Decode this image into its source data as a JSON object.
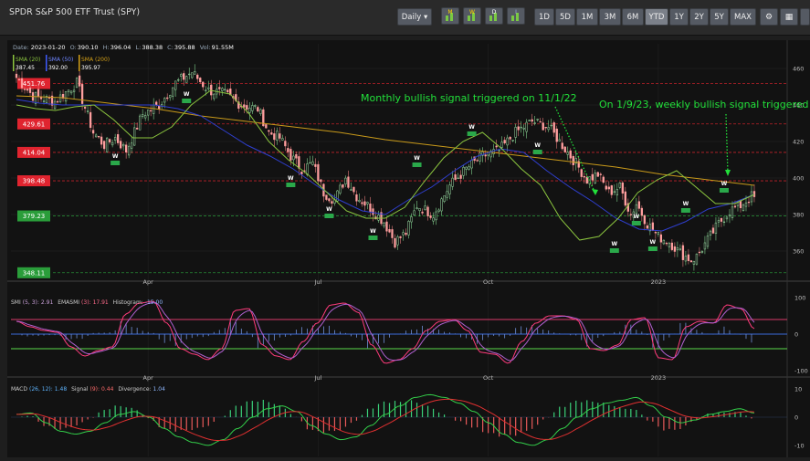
{
  "window": {
    "title": "SPDR S&P 500 ETF Trust (SPY)"
  },
  "toolbar": {
    "interval": "Daily ▾",
    "ranges": [
      "1D",
      "5D",
      "1M",
      "3M",
      "6M",
      "YTD",
      "1Y",
      "2Y",
      "5Y",
      "MAX"
    ],
    "active_range": "YTD",
    "indicator_icons": [
      "M",
      "W",
      "D",
      "I"
    ]
  },
  "price_info": {
    "date_label": "Date:",
    "date": "2023-01-20",
    "open_label": "O:",
    "open": "390.10",
    "high_label": "H:",
    "high": "396.04",
    "low_label": "L:",
    "low": "388.38",
    "close_label": "C:",
    "close": "395.88",
    "volume_label": "Vol:",
    "volume": "91.55M"
  },
  "sma_legend": [
    {
      "label": "SMA (20)",
      "value": "387.45",
      "color": "#8cc63f"
    },
    {
      "label": "SMA (50)",
      "value": "392.00",
      "color": "#2f3fd0"
    },
    {
      "label": "SMA (200)",
      "value": "395.97",
      "color": "#d4a017"
    }
  ],
  "levels": [
    {
      "value": "451.76",
      "color": "#e0242f"
    },
    {
      "value": "429.61",
      "color": "#e0242f"
    },
    {
      "value": "414.04",
      "color": "#e0242f"
    },
    {
      "value": "398.48",
      "color": "#e0242f"
    },
    {
      "value": "379.23",
      "color": "#2a9d3a"
    },
    {
      "value": "348.11",
      "color": "#2a9d3a"
    }
  ],
  "annotations": {
    "monthly": "Monthly bullish signal triggered on 11/1/22",
    "weekly": "On 1/9/23, weekly bullish signal triggered"
  },
  "smi_legend": {
    "name": "SMI",
    "params": "(5, 3):",
    "smi_value": "2.91",
    "ema_label": "EMASMI",
    "ema_params": "(3):",
    "ema_value": "17.91",
    "hist_label": "Histogram:",
    "hist_value": "-15.00"
  },
  "macd_legend": {
    "name": "MACD",
    "params": "(26, 12):",
    "macd_value": "1.48",
    "signal_label": "Signal",
    "signal_params": "(9):",
    "signal_value": "0.44",
    "div_label": "Divergence:",
    "div_value": "1.04"
  },
  "chart_data": [
    {
      "type": "candlestick",
      "title": "SPDR S&P 500 ETF Trust (SPY)",
      "x_ticks": [
        "Apr",
        "Jul",
        "Oct",
        "2023"
      ],
      "y_ticks": [
        360,
        380,
        400,
        420,
        440,
        460
      ],
      "ylim": [
        346,
        466
      ],
      "n": 270,
      "keypoints": [
        [
          0,
          455
        ],
        [
          6,
          445
        ],
        [
          14,
          442
        ],
        [
          22,
          452
        ],
        [
          28,
          425
        ],
        [
          32,
          418
        ],
        [
          36,
          422
        ],
        [
          40,
          415
        ],
        [
          46,
          435
        ],
        [
          52,
          440
        ],
        [
          58,
          452
        ],
        [
          64,
          458
        ],
        [
          70,
          448
        ],
        [
          76,
          446
        ],
        [
          82,
          440
        ],
        [
          88,
          438
        ],
        [
          92,
          425
        ],
        [
          96,
          422
        ],
        [
          100,
          412
        ],
        [
          104,
          405
        ],
        [
          108,
          408
        ],
        [
          112,
          392
        ],
        [
          116,
          388
        ],
        [
          120,
          400
        ],
        [
          124,
          390
        ],
        [
          128,
          385
        ],
        [
          130,
          382
        ],
        [
          134,
          376
        ],
        [
          138,
          365
        ],
        [
          142,
          370
        ],
        [
          146,
          385
        ],
        [
          152,
          380
        ],
        [
          158,
          396
        ],
        [
          164,
          405
        ],
        [
          170,
          412
        ],
        [
          176,
          415
        ],
        [
          182,
          425
        ],
        [
          188,
          431
        ],
        [
          194,
          428
        ],
        [
          198,
          420
        ],
        [
          204,
          408
        ],
        [
          208,
          399
        ],
        [
          212,
          402
        ],
        [
          216,
          392
        ],
        [
          220,
          395
        ],
        [
          224,
          380
        ],
        [
          226,
          386
        ],
        [
          230,
          375
        ],
        [
          234,
          368
        ],
        [
          238,
          365
        ],
        [
          242,
          359
        ],
        [
          246,
          355
        ],
        [
          248,
          357
        ],
        [
          252,
          366
        ],
        [
          256,
          375
        ],
        [
          260,
          382
        ],
        [
          264,
          385
        ],
        [
          268,
          390
        ],
        [
          270,
          388
        ]
      ],
      "sma20_values": [
        440,
        438,
        437,
        439,
        440,
        432,
        422,
        422,
        428,
        440,
        448,
        446,
        435,
        420,
        410,
        402,
        392,
        382,
        378,
        378,
        384,
        398,
        411,
        420,
        425,
        416,
        405,
        396,
        378,
        366,
        368,
        378,
        392,
        399,
        404,
        395,
        386,
        386,
        391
      ],
      "sma50_values": [
        443,
        441,
        440,
        440,
        440,
        440,
        440,
        438,
        434,
        426,
        418,
        412,
        405,
        396,
        388,
        382,
        380,
        388,
        395,
        404,
        412,
        416,
        414,
        404,
        395,
        387,
        378,
        372,
        371,
        376,
        383,
        386,
        391
      ],
      "sma200_values": [
        445,
        444,
        441,
        438,
        434,
        431,
        428,
        425,
        421,
        418,
        415,
        412,
        409,
        406,
        402,
        399,
        396
      ],
      "weekly_markers": [
        {
          "i": 36,
          "v": 410
        },
        {
          "i": 62,
          "v": 444
        },
        {
          "i": 100,
          "v": 398
        },
        {
          "i": 114,
          "v": 381
        },
        {
          "i": 130,
          "v": 369
        },
        {
          "i": 146,
          "v": 409
        },
        {
          "i": 166,
          "v": 426
        },
        {
          "i": 190,
          "v": 416
        },
        {
          "i": 218,
          "v": 362
        },
        {
          "i": 226,
          "v": 377
        },
        {
          "i": 232,
          "v": 363
        },
        {
          "i": 244,
          "v": 384
        },
        {
          "i": 258,
          "v": 395
        }
      ]
    },
    {
      "type": "line",
      "title": "SMI (5, 3)",
      "x_ticks": [
        "Apr",
        "Jul",
        "Oct",
        "2023"
      ],
      "y_ticks": [
        100,
        0,
        -100
      ],
      "ylim": [
        -100,
        100
      ],
      "smi_values": [
        35,
        20,
        10,
        5,
        -35,
        -60,
        -45,
        -35,
        55,
        85,
        90,
        30,
        -40,
        -55,
        -70,
        -40,
        65,
        70,
        -30,
        -60,
        -70,
        -20,
        30,
        80,
        85,
        60,
        -30,
        -80,
        -70,
        -40,
        10,
        35,
        40,
        10,
        -50,
        -55,
        -80,
        -20,
        30,
        50,
        50,
        40,
        -40,
        -45,
        -30,
        40,
        45,
        -65,
        -70,
        20,
        35,
        30,
        80,
        70,
        15
      ]
    },
    {
      "type": "line",
      "title": "MACD (26, 12)",
      "y_ticks": [
        10,
        0,
        -10
      ],
      "ylim": [
        -12,
        12
      ],
      "macd_values": [
        1,
        1.5,
        -2,
        -5,
        -6,
        -5,
        -2,
        1,
        2,
        0,
        -4,
        -7,
        -9,
        -10,
        -8,
        -4,
        0,
        3,
        4,
        2,
        -3,
        -6,
        -8,
        -7,
        -3,
        1,
        4,
        7,
        8,
        7,
        5,
        2,
        -2,
        -6,
        -9,
        -10,
        -8,
        -4,
        0,
        3,
        5,
        6,
        7,
        4,
        0,
        -2,
        -1,
        1,
        2,
        3,
        1.48
      ]
    }
  ]
}
